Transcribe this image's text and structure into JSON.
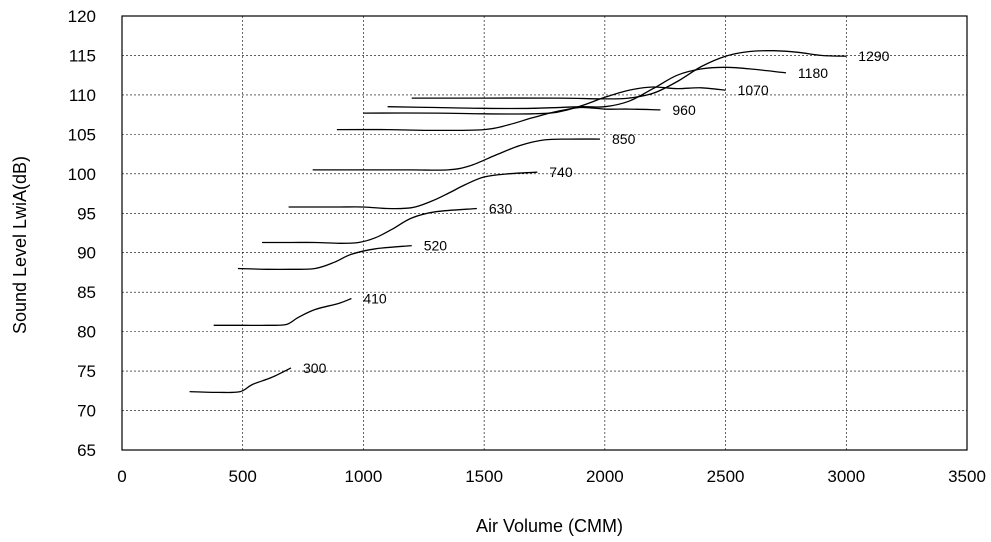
{
  "chart_data": {
    "type": "line",
    "title": "",
    "xlabel": "Air Volume (CMM)",
    "ylabel": "Sound Level LwiA(dB)",
    "xlim": [
      0,
      3500
    ],
    "ylim": [
      65,
      120
    ],
    "xticks": [
      0,
      500,
      1000,
      1500,
      2000,
      2500,
      3000,
      3500
    ],
    "yticks": [
      65,
      70,
      75,
      80,
      85,
      90,
      95,
      100,
      105,
      110,
      115,
      120
    ],
    "grid": true,
    "legend": "none",
    "series": [
      {
        "name": "300",
        "points": [
          [
            280,
            72.4
          ],
          [
            400,
            72.3
          ],
          [
            490,
            72.4
          ],
          [
            540,
            73.3
          ],
          [
            620,
            74.2
          ],
          [
            700,
            75.4
          ]
        ]
      },
      {
        "name": "410",
        "points": [
          [
            380,
            80.8
          ],
          [
            500,
            80.8
          ],
          [
            600,
            80.8
          ],
          [
            680,
            80.9
          ],
          [
            730,
            81.8
          ],
          [
            800,
            82.8
          ],
          [
            900,
            83.6
          ],
          [
            950,
            84.2
          ]
        ]
      },
      {
        "name": "520",
        "points": [
          [
            480,
            88.0
          ],
          [
            600,
            87.9
          ],
          [
            700,
            87.9
          ],
          [
            800,
            88.0
          ],
          [
            880,
            88.8
          ],
          [
            950,
            89.8
          ],
          [
            1050,
            90.5
          ],
          [
            1200,
            90.9
          ]
        ]
      },
      {
        "name": "630",
        "points": [
          [
            580,
            91.3
          ],
          [
            700,
            91.3
          ],
          [
            800,
            91.3
          ],
          [
            900,
            91.2
          ],
          [
            980,
            91.3
          ],
          [
            1050,
            91.9
          ],
          [
            1120,
            93.0
          ],
          [
            1200,
            94.4
          ],
          [
            1300,
            95.2
          ],
          [
            1470,
            95.6
          ]
        ]
      },
      {
        "name": "740",
        "points": [
          [
            690,
            95.8
          ],
          [
            800,
            95.8
          ],
          [
            900,
            95.8
          ],
          [
            1000,
            95.8
          ],
          [
            1100,
            95.6
          ],
          [
            1200,
            95.7
          ],
          [
            1280,
            96.5
          ],
          [
            1350,
            97.5
          ],
          [
            1420,
            98.6
          ],
          [
            1500,
            99.6
          ],
          [
            1600,
            100.0
          ],
          [
            1720,
            100.2
          ]
        ]
      },
      {
        "name": "850",
        "points": [
          [
            790,
            100.5
          ],
          [
            1000,
            100.5
          ],
          [
            1200,
            100.5
          ],
          [
            1350,
            100.5
          ],
          [
            1440,
            101.0
          ],
          [
            1550,
            102.4
          ],
          [
            1650,
            103.6
          ],
          [
            1750,
            104.3
          ],
          [
            1850,
            104.4
          ],
          [
            1980,
            104.4
          ]
        ]
      },
      {
        "name": "960",
        "points": [
          [
            890,
            105.6
          ],
          [
            1100,
            105.6
          ],
          [
            1300,
            105.5
          ],
          [
            1500,
            105.6
          ],
          [
            1600,
            106.2
          ],
          [
            1700,
            107.1
          ],
          [
            1800,
            107.9
          ],
          [
            1900,
            108.4
          ],
          [
            2000,
            108.2
          ],
          [
            2100,
            108.2
          ],
          [
            2230,
            108.1
          ]
        ]
      },
      {
        "name": "1070",
        "points": [
          [
            1000,
            107.7
          ],
          [
            1300,
            107.7
          ],
          [
            1500,
            107.6
          ],
          [
            1700,
            107.6
          ],
          [
            1800,
            107.8
          ],
          [
            1900,
            108.6
          ],
          [
            2000,
            109.7
          ],
          [
            2100,
            110.6
          ],
          [
            2200,
            111.0
          ],
          [
            2300,
            110.8
          ],
          [
            2400,
            110.9
          ],
          [
            2500,
            110.6
          ]
        ]
      },
      {
        "name": "1180",
        "points": [
          [
            1100,
            108.5
          ],
          [
            1300,
            108.4
          ],
          [
            1500,
            108.3
          ],
          [
            1700,
            108.3
          ],
          [
            1900,
            108.5
          ],
          [
            2000,
            108.5
          ],
          [
            2100,
            109.2
          ],
          [
            2200,
            110.8
          ],
          [
            2300,
            112.5
          ],
          [
            2400,
            113.3
          ],
          [
            2500,
            113.5
          ],
          [
            2600,
            113.3
          ],
          [
            2750,
            112.8
          ]
        ]
      },
      {
        "name": "1290",
        "points": [
          [
            1200,
            109.6
          ],
          [
            1500,
            109.6
          ],
          [
            1800,
            109.6
          ],
          [
            2000,
            109.5
          ],
          [
            2100,
            109.6
          ],
          [
            2200,
            110.2
          ],
          [
            2300,
            111.7
          ],
          [
            2400,
            113.6
          ],
          [
            2500,
            114.9
          ],
          [
            2600,
            115.5
          ],
          [
            2700,
            115.6
          ],
          [
            2800,
            115.4
          ],
          [
            2900,
            115.0
          ],
          [
            3000,
            114.9
          ]
        ]
      }
    ]
  }
}
